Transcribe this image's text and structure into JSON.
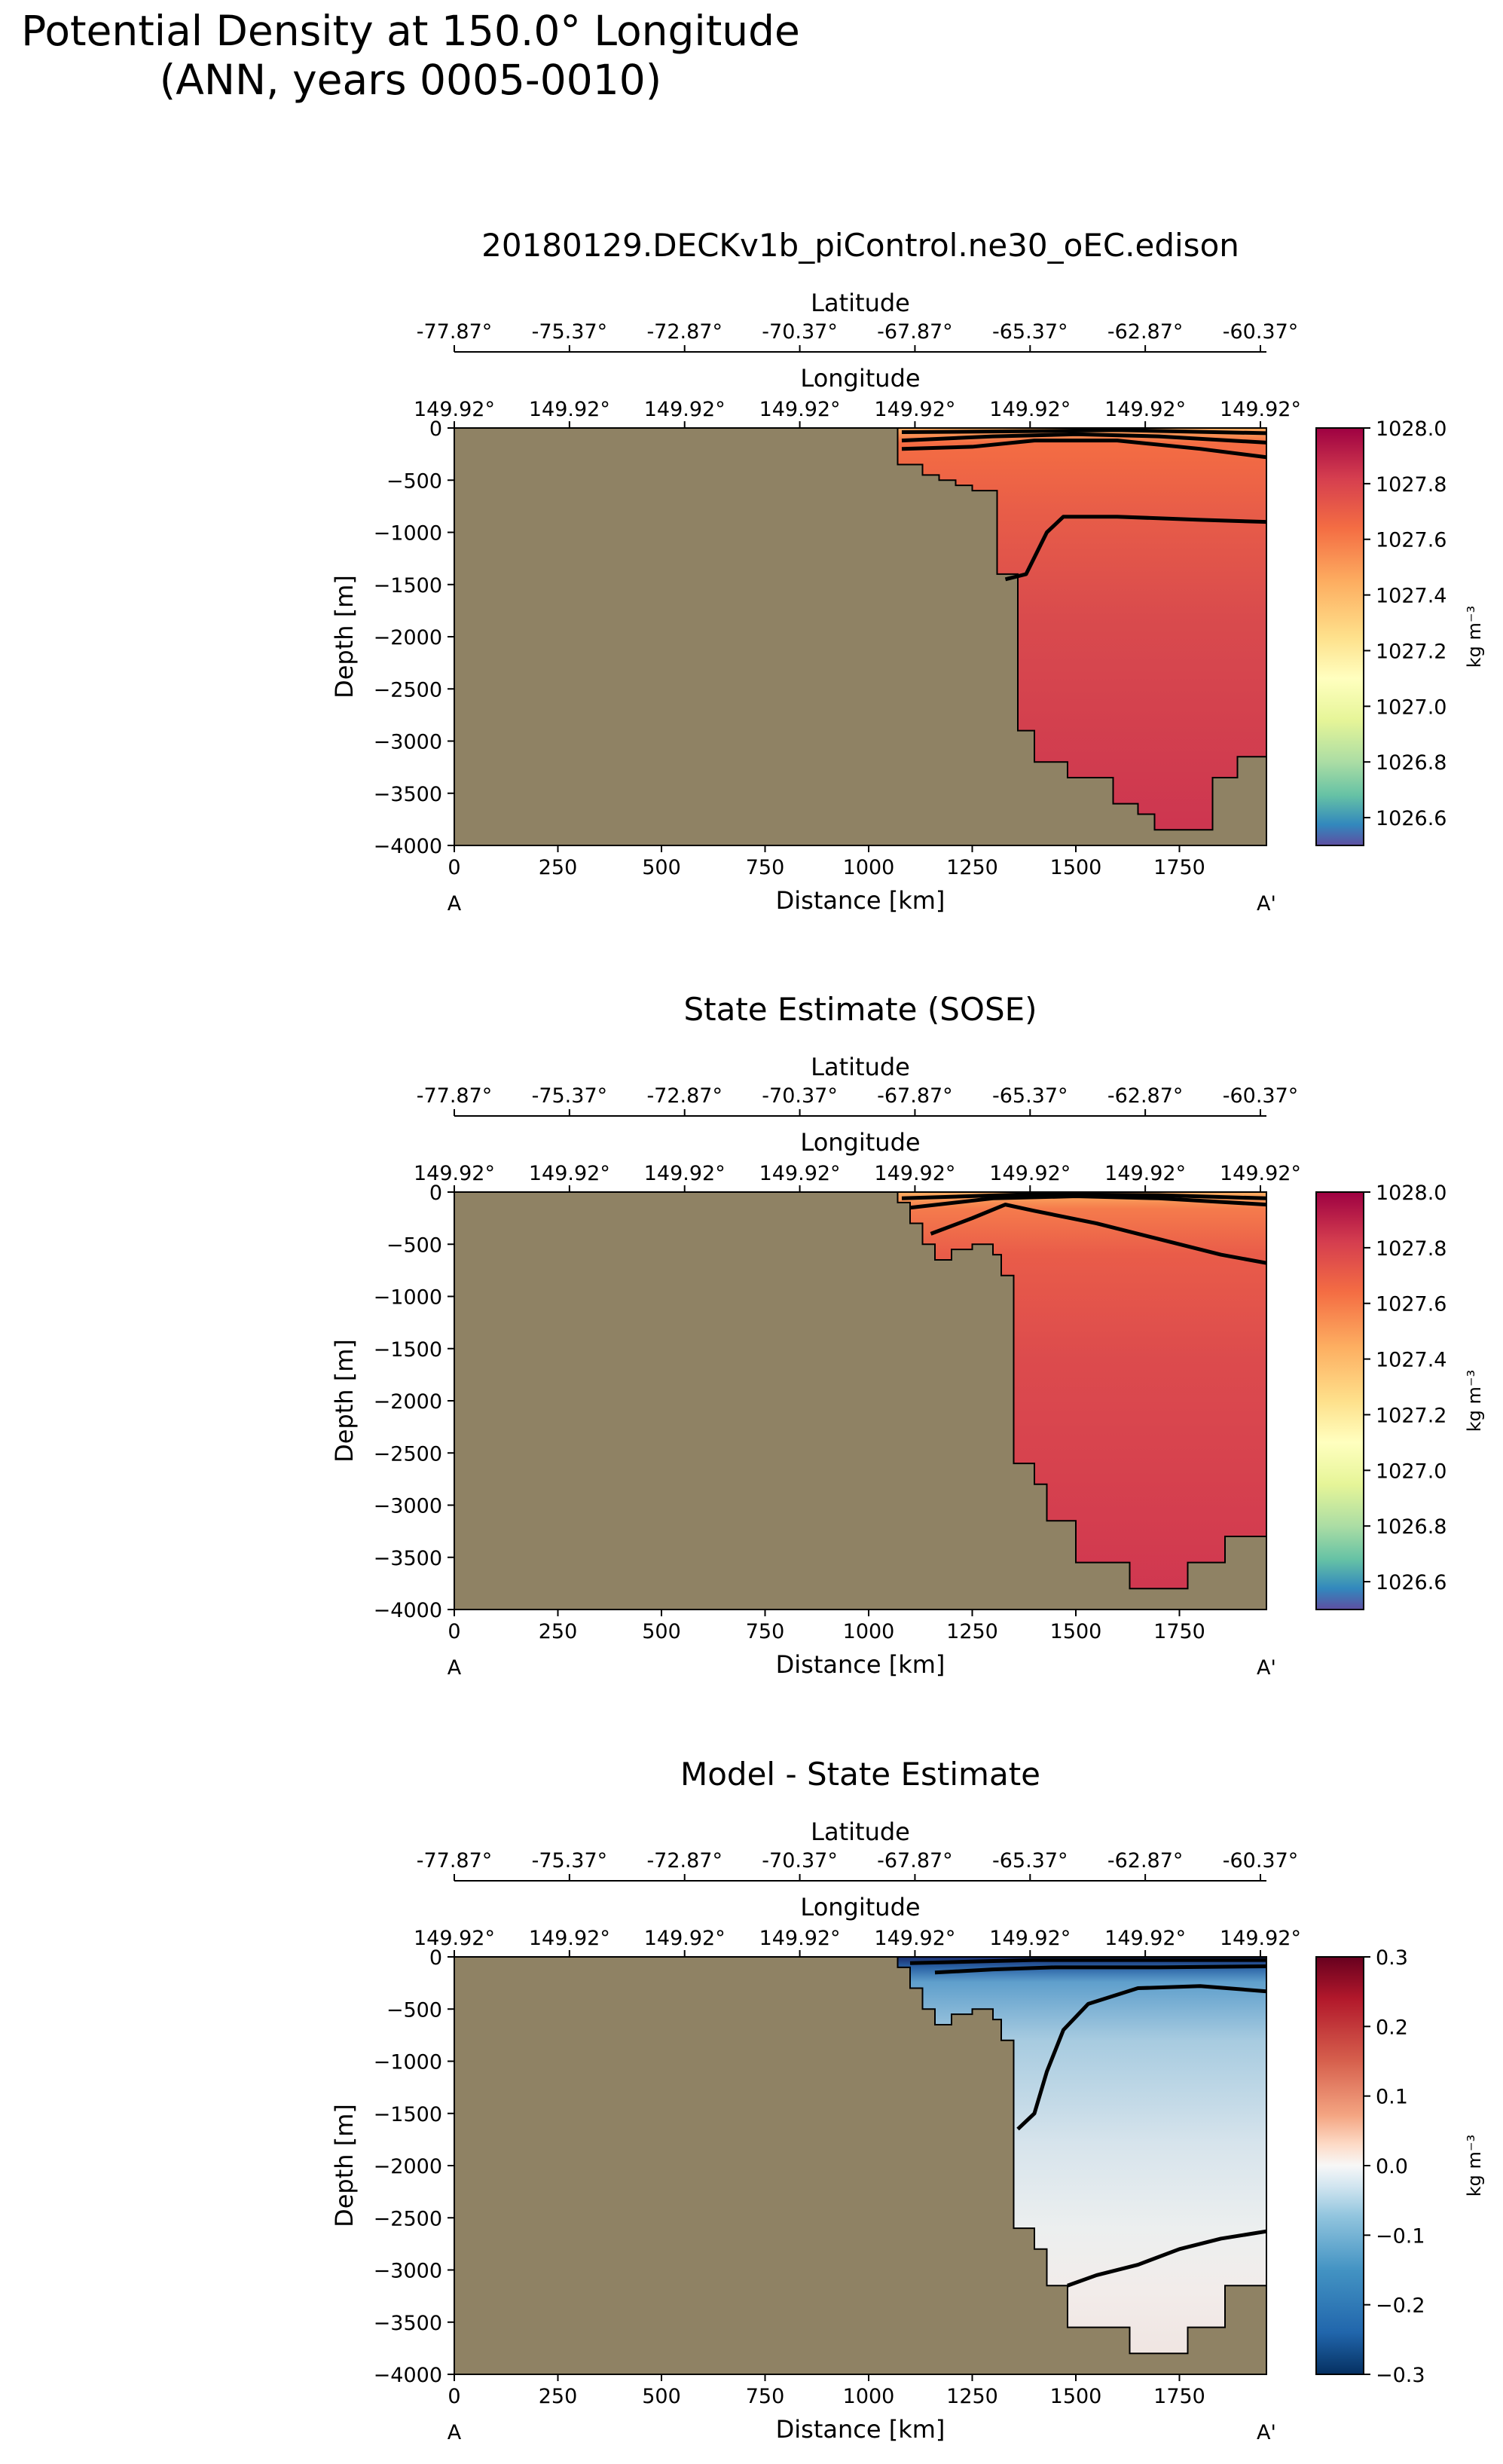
{
  "suptitle_line1": "Potential Density at 150.0° Longitude",
  "suptitle_line2": "(ANN, years 0005-0010)",
  "colors": {
    "land": "#8f8264"
  },
  "chart_data": [
    {
      "type": "heatmap",
      "title": "20180129.DECKv1b_piControl.ne30_oEC.edison",
      "xlabel": "Distance [km]",
      "ylabel": "Depth [m]",
      "xlim": [
        0,
        1960
      ],
      "ylim": [
        -4000,
        0
      ],
      "x_ticks": [
        0,
        250,
        500,
        750,
        1000,
        1250,
        1500,
        1750
      ],
      "y_ticks": [
        0,
        -500,
        -1000,
        -1500,
        -2000,
        -2500,
        -3000,
        -3500,
        -4000
      ],
      "section_start_label": "A",
      "section_end_label": "A'",
      "top_axis_1_label": "Latitude",
      "top_axis_1_ticks": [
        "-77.87°",
        "-75.37°",
        "-72.87°",
        "-70.37°",
        "-67.87°",
        "-65.37°",
        "-62.87°",
        "-60.37°"
      ],
      "top_axis_2_label": "Longitude",
      "top_axis_2_ticks": [
        "149.92°",
        "149.92°",
        "149.92°",
        "149.92°",
        "149.92°",
        "149.92°",
        "149.92°",
        "149.92°"
      ],
      "colorbar_label": "kg m⁻³",
      "colorbar_range": [
        1026.5,
        1028.0
      ],
      "colorbar_ticks": [
        "1028.0",
        "1027.8",
        "1027.6",
        "1027.4",
        "1027.2",
        "1027.0",
        "1026.8",
        "1026.6"
      ],
      "colormap": "Spectral_r",
      "bottom_depth": [
        [
          0,
          0
        ],
        [
          1070,
          0
        ],
        [
          1070,
          -350
        ],
        [
          1130,
          -350
        ],
        [
          1130,
          -450
        ],
        [
          1170,
          -450
        ],
        [
          1170,
          -500
        ],
        [
          1210,
          -500
        ],
        [
          1210,
          -550
        ],
        [
          1250,
          -550
        ],
        [
          1250,
          -600
        ],
        [
          1310,
          -600
        ],
        [
          1310,
          -1400
        ],
        [
          1360,
          -1400
        ],
        [
          1360,
          -2900
        ],
        [
          1400,
          -2900
        ],
        [
          1400,
          -3200
        ],
        [
          1480,
          -3200
        ],
        [
          1480,
          -3350
        ],
        [
          1590,
          -3350
        ],
        [
          1590,
          -3600
        ],
        [
          1650,
          -3600
        ],
        [
          1650,
          -3700
        ],
        [
          1690,
          -3700
        ],
        [
          1690,
          -3850
        ],
        [
          1830,
          -3850
        ],
        [
          1830,
          -3350
        ],
        [
          1890,
          -3350
        ],
        [
          1890,
          -3150
        ],
        [
          1960,
          -3150
        ]
      ],
      "contours": [
        {
          "level": 1027.8,
          "points": [
            [
              1330,
              -1450
            ],
            [
              1380,
              -1400
            ],
            [
              1430,
              -1000
            ],
            [
              1470,
              -850
            ],
            [
              1600,
              -850
            ],
            [
              1800,
              -880
            ],
            [
              1960,
              -900
            ]
          ]
        },
        {
          "level": 1027.5,
          "points": [
            [
              1080,
              -200
            ],
            [
              1250,
              -180
            ],
            [
              1400,
              -120
            ],
            [
              1600,
              -120
            ],
            [
              1800,
              -200
            ],
            [
              1960,
              -280
            ]
          ]
        },
        {
          "level": 1027.3,
          "points": [
            [
              1080,
              -120
            ],
            [
              1300,
              -80
            ],
            [
              1500,
              -60
            ],
            [
              1700,
              -80
            ],
            [
              1960,
              -140
            ]
          ]
        },
        {
          "level": 1027.0,
          "points": [
            [
              1080,
              -40
            ],
            [
              1400,
              -30
            ],
            [
              1600,
              -20
            ],
            [
              1960,
              -50
            ]
          ]
        }
      ]
    },
    {
      "type": "heatmap",
      "title": "State Estimate (SOSE)",
      "xlabel": "Distance [km]",
      "ylabel": "Depth [m]",
      "xlim": [
        0,
        1960
      ],
      "ylim": [
        -4000,
        0
      ],
      "x_ticks": [
        0,
        250,
        500,
        750,
        1000,
        1250,
        1500,
        1750
      ],
      "y_ticks": [
        0,
        -500,
        -1000,
        -1500,
        -2000,
        -2500,
        -3000,
        -3500,
        -4000
      ],
      "section_start_label": "A",
      "section_end_label": "A'",
      "top_axis_1_label": "Latitude",
      "top_axis_1_ticks": [
        "-77.87°",
        "-75.37°",
        "-72.87°",
        "-70.37°",
        "-67.87°",
        "-65.37°",
        "-62.87°",
        "-60.37°"
      ],
      "top_axis_2_label": "Longitude",
      "top_axis_2_ticks": [
        "149.92°",
        "149.92°",
        "149.92°",
        "149.92°",
        "149.92°",
        "149.92°",
        "149.92°",
        "149.92°"
      ],
      "colorbar_label": "kg m⁻³",
      "colorbar_range": [
        1026.5,
        1028.0
      ],
      "colorbar_ticks": [
        "1028.0",
        "1027.8",
        "1027.6",
        "1027.4",
        "1027.2",
        "1027.0",
        "1026.8",
        "1026.6"
      ],
      "colormap": "Spectral_r",
      "bottom_depth": [
        [
          0,
          0
        ],
        [
          1070,
          0
        ],
        [
          1070,
          -100
        ],
        [
          1100,
          -100
        ],
        [
          1100,
          -300
        ],
        [
          1130,
          -300
        ],
        [
          1130,
          -500
        ],
        [
          1160,
          -500
        ],
        [
          1160,
          -650
        ],
        [
          1200,
          -650
        ],
        [
          1200,
          -550
        ],
        [
          1250,
          -550
        ],
        [
          1250,
          -500
        ],
        [
          1300,
          -500
        ],
        [
          1300,
          -600
        ],
        [
          1320,
          -600
        ],
        [
          1320,
          -800
        ],
        [
          1350,
          -800
        ],
        [
          1350,
          -2600
        ],
        [
          1400,
          -2600
        ],
        [
          1400,
          -2800
        ],
        [
          1430,
          -2800
        ],
        [
          1430,
          -3150
        ],
        [
          1500,
          -3150
        ],
        [
          1500,
          -3550
        ],
        [
          1630,
          -3550
        ],
        [
          1630,
          -3800
        ],
        [
          1770,
          -3800
        ],
        [
          1770,
          -3550
        ],
        [
          1860,
          -3550
        ],
        [
          1860,
          -3300
        ],
        [
          1960,
          -3300
        ]
      ],
      "contours": [
        {
          "level": 1027.7,
          "points": [
            [
              1150,
              -400
            ],
            [
              1250,
              -250
            ],
            [
              1330,
              -120
            ],
            [
              1400,
              -180
            ],
            [
              1550,
              -300
            ],
            [
              1700,
              -450
            ],
            [
              1850,
              -600
            ],
            [
              1960,
              -680
            ]
          ]
        },
        {
          "level": 1027.4,
          "points": [
            [
              1100,
              -150
            ],
            [
              1300,
              -60
            ],
            [
              1500,
              -40
            ],
            [
              1700,
              -60
            ],
            [
              1960,
              -120
            ]
          ]
        },
        {
          "level": 1027.2,
          "points": [
            [
              1080,
              -60
            ],
            [
              1400,
              -20
            ],
            [
              1700,
              -30
            ],
            [
              1960,
              -60
            ]
          ]
        }
      ]
    },
    {
      "type": "heatmap",
      "title": "Model - State Estimate",
      "xlabel": "Distance [km]",
      "ylabel": "Depth [m]",
      "xlim": [
        0,
        1960
      ],
      "ylim": [
        -4000,
        0
      ],
      "x_ticks": [
        0,
        250,
        500,
        750,
        1000,
        1250,
        1500,
        1750
      ],
      "y_ticks": [
        0,
        -500,
        -1000,
        -1500,
        -2000,
        -2500,
        -3000,
        -3500,
        -4000
      ],
      "section_start_label": "A",
      "section_end_label": "A'",
      "top_axis_1_label": "Latitude",
      "top_axis_1_ticks": [
        "-77.87°",
        "-75.37°",
        "-72.87°",
        "-70.37°",
        "-67.87°",
        "-65.37°",
        "-62.87°",
        "-60.37°"
      ],
      "top_axis_2_label": "Longitude",
      "top_axis_2_ticks": [
        "149.92°",
        "149.92°",
        "149.92°",
        "149.92°",
        "149.92°",
        "149.92°",
        "149.92°",
        "149.92°"
      ],
      "colorbar_label": "kg m⁻³",
      "colorbar_range": [
        -0.3,
        0.3
      ],
      "colorbar_ticks": [
        "0.3",
        "0.2",
        "0.1",
        "0.0",
        "−0.1",
        "−0.2",
        "−0.3"
      ],
      "colormap": "RdBu_r",
      "bottom_depth": [
        [
          0,
          0
        ],
        [
          1070,
          0
        ],
        [
          1070,
          -100
        ],
        [
          1100,
          -100
        ],
        [
          1100,
          -300
        ],
        [
          1130,
          -300
        ],
        [
          1130,
          -500
        ],
        [
          1160,
          -500
        ],
        [
          1160,
          -650
        ],
        [
          1200,
          -650
        ],
        [
          1200,
          -550
        ],
        [
          1250,
          -550
        ],
        [
          1250,
          -500
        ],
        [
          1300,
          -500
        ],
        [
          1300,
          -600
        ],
        [
          1320,
          -600
        ],
        [
          1320,
          -800
        ],
        [
          1350,
          -800
        ],
        [
          1350,
          -2600
        ],
        [
          1400,
          -2600
        ],
        [
          1400,
          -2800
        ],
        [
          1430,
          -2800
        ],
        [
          1430,
          -3150
        ],
        [
          1480,
          -3150
        ],
        [
          1480,
          -3550
        ],
        [
          1630,
          -3550
        ],
        [
          1630,
          -3800
        ],
        [
          1770,
          -3800
        ],
        [
          1770,
          -3550
        ],
        [
          1860,
          -3550
        ],
        [
          1860,
          -3150
        ],
        [
          1960,
          -3150
        ]
      ],
      "contours": [
        {
          "level": -0.1,
          "points": [
            [
              1360,
              -1650
            ],
            [
              1400,
              -1500
            ],
            [
              1430,
              -1100
            ],
            [
              1470,
              -700
            ],
            [
              1530,
              -450
            ],
            [
              1650,
              -300
            ],
            [
              1800,
              -280
            ],
            [
              1960,
              -330
            ]
          ]
        },
        {
          "level": 0.0,
          "points": [
            [
              1480,
              -3150
            ],
            [
              1550,
              -3050
            ],
            [
              1650,
              -2950
            ],
            [
              1750,
              -2800
            ],
            [
              1850,
              -2700
            ],
            [
              1960,
              -2630
            ]
          ]
        },
        {
          "level": -0.2,
          "points": [
            [
              1160,
              -150
            ],
            [
              1300,
              -120
            ],
            [
              1450,
              -100
            ],
            [
              1700,
              -100
            ],
            [
              1960,
              -90
            ]
          ]
        },
        {
          "level": -0.3,
          "points": [
            [
              1100,
              -60
            ],
            [
              1400,
              -30
            ],
            [
              1960,
              -30
            ]
          ]
        }
      ]
    }
  ]
}
